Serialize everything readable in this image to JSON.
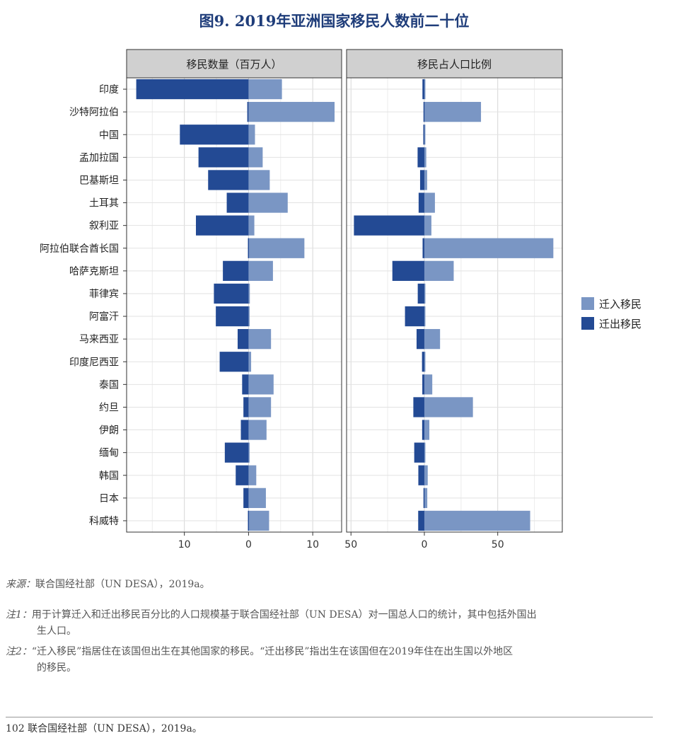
{
  "title": "图9.  2019年亚洲国家移民人数前二十位",
  "chart_data": {
    "type": "bar",
    "orientation": "horizontal",
    "categories": [
      "印度",
      "沙特阿拉伯",
      "中国",
      "孟加拉国",
      "巴基斯坦",
      "土耳其",
      "叙利亚",
      "阿拉伯联合酋长国",
      "哈萨克斯坦",
      "菲律宾",
      "阿富汗",
      "马来西亚",
      "印度尼西亚",
      "泰国",
      "约旦",
      "伊朗",
      "缅甸",
      "韩国",
      "日本",
      "科威特"
    ],
    "legend": {
      "position": "right",
      "entries": [
        "迁入移民",
        "迁出移民"
      ]
    },
    "colors": {
      "immigrants": "#7a96c4",
      "emigrants": "#234a94",
      "panel_header": "#d0d0d0",
      "grid": "#dddddd"
    },
    "grid": true,
    "panels": [
      {
        "title": "移民数量（百万人）",
        "xlim": [
          -19,
          14.5
        ],
        "ticks": [
          -10,
          0,
          10
        ],
        "tick_labels": [
          "10",
          "0",
          "10"
        ],
        "series": [
          {
            "name": "迁入移民",
            "values": [
              5.2,
              13.4,
              1.0,
              2.2,
              3.3,
              6.1,
              0.9,
              8.7,
              3.8,
              0.2,
              0.1,
              3.5,
              0.4,
              3.9,
              3.5,
              2.8,
              0.1,
              1.2,
              2.7,
              3.2
            ]
          },
          {
            "name": "迁出移民",
            "values": [
              -17.5,
              -0.2,
              -10.7,
              -7.8,
              -6.3,
              -3.4,
              -8.2,
              -0.1,
              -4.0,
              -5.4,
              -5.1,
              -1.7,
              -4.5,
              -1.0,
              -0.8,
              -1.2,
              -3.7,
              -2.0,
              -0.8,
              -0.1
            ]
          }
        ]
      },
      {
        "title": "移民占人口比例",
        "xlim": [
          -53,
          94
        ],
        "ticks": [
          -50,
          0,
          50
        ],
        "tick_labels": [
          "50",
          "0",
          "50"
        ],
        "series": [
          {
            "name": "迁入移民",
            "values": [
              0.4,
              38.6,
              0.1,
              1.3,
              1.9,
              7.2,
              4.8,
              87.9,
              20.0,
              0.2,
              0.4,
              10.7,
              0.1,
              5.4,
              33.1,
              3.4,
              0.1,
              2.3,
              2.0,
              72.1
            ]
          },
          {
            "name": "迁出移民",
            "values": [
              -1.3,
              -0.6,
              -0.7,
              -4.6,
              -2.9,
              -3.9,
              -48.0,
              -1.2,
              -21.8,
              -4.5,
              -13.2,
              -5.3,
              -1.6,
              -1.4,
              -7.5,
              -1.5,
              -6.9,
              -4.1,
              -0.6,
              -4.2
            ]
          }
        ]
      }
    ]
  },
  "notes": {
    "source_label": "来源：",
    "source_text": "联合国经社部（UN DESA），2019a。",
    "note1_label": "注1：",
    "note1_text": "用于计算迁入和迁出移民百分比的人口规模基于联合国经社部（UN DESA）对一国总人口的统计，其中包括外国出",
    "note1_cont": "生人口。",
    "note2_label": "注2：",
    "note2_text": "“迁入移民”指居住在该国但出生在其他国家的移民。“迁出移民”指出生在该国但在2019年住在出生国以外地区",
    "note2_cont": "的移民。"
  },
  "footer": "102 联合国经社部（UN DESA），2019a。"
}
